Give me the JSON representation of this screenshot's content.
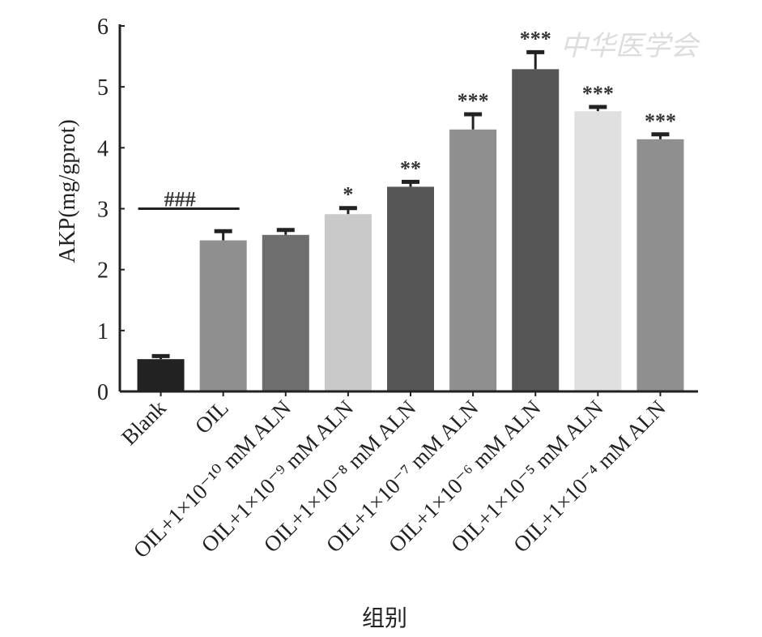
{
  "chart_data": {
    "type": "bar",
    "title": "",
    "xlabel": "组别",
    "ylabel": "AKP(mg/gprot)",
    "ylim": [
      0,
      6
    ],
    "yticks": [
      "0",
      "1",
      "2",
      "3",
      "4",
      "5",
      "6"
    ],
    "grid": false,
    "categories": [
      "Blank",
      "OIL",
      "OIL+1×10⁻¹⁰ mM ALN",
      "OIL+1×10⁻⁹ mM ALN",
      "OIL+1×10⁻⁸ mM ALN",
      "OIL+1×10⁻⁷ mM ALN",
      "OIL+1×10⁻⁶ mM ALN",
      "OIL+1×10⁻⁵ mM ALN",
      "OIL+1×10⁻⁴ mM ALN"
    ],
    "values": [
      0.53,
      2.48,
      2.57,
      2.91,
      3.36,
      4.3,
      5.29,
      4.6,
      4.14
    ],
    "error_upper": [
      0.58,
      2.63,
      2.65,
      3.01,
      3.44,
      4.55,
      5.57,
      4.67,
      4.22
    ],
    "significance": [
      "",
      "",
      "",
      "*",
      "**",
      "***",
      "***",
      "***",
      "***"
    ],
    "bracket": {
      "label": "###",
      "y": 3.0,
      "from": 0,
      "to": 1
    },
    "colors": [
      "#222222",
      "#8f8f8f",
      "#6e6e6e",
      "#c9c9c9",
      "#565656",
      "#8f8f8f",
      "#565656",
      "#e0e0e0",
      "#8f8f8f"
    ]
  },
  "watermark": "中华医学会"
}
